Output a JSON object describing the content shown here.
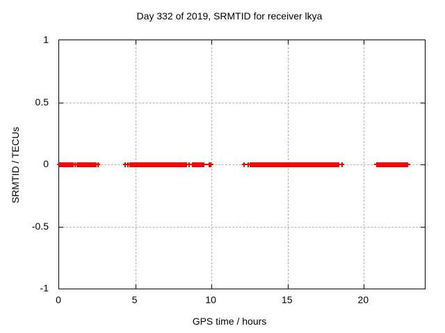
{
  "chart_data": {
    "type": "scatter",
    "marker": "plus",
    "title": "Day 332 of 2019, SRMTID for receiver lkya",
    "xlabel": "GPS time / hours",
    "ylabel": "SRMTID / TECUs",
    "xlim": [
      0,
      24
    ],
    "ylim": [
      -1,
      1
    ],
    "xticks": [
      {
        "value": 0,
        "label": "0"
      },
      {
        "value": 5,
        "label": "5"
      },
      {
        "value": 10,
        "label": "10"
      },
      {
        "value": 15,
        "label": "15"
      },
      {
        "value": 20,
        "label": "20"
      }
    ],
    "yticks": [
      {
        "value": 1,
        "label": "1"
      },
      {
        "value": 0.5,
        "label": "0.5"
      },
      {
        "value": 0,
        "label": "0"
      },
      {
        "value": -0.5,
        "label": "-0.5"
      },
      {
        "value": -1,
        "label": "-1"
      }
    ],
    "grid": true,
    "legend": null,
    "series": [
      {
        "name": "SRMTID",
        "color": "#ff0000",
        "y_value": 0,
        "dense_segments_hours": [
          [
            0.0,
            0.95
          ],
          [
            1.15,
            2.45
          ],
          [
            4.6,
            8.4
          ],
          [
            8.7,
            9.55
          ],
          [
            12.5,
            18.4
          ],
          [
            20.8,
            22.9
          ]
        ],
        "isolated_points_hours": [
          1.05,
          2.55,
          4.35,
          4.5,
          8.55,
          9.85,
          9.95,
          12.15,
          12.4,
          18.55
        ]
      }
    ],
    "colors": {
      "background": "#ffffff",
      "frame": "#000000",
      "grid": "#b3b3b3",
      "text": "#000000",
      "data": "#ff0000"
    }
  }
}
